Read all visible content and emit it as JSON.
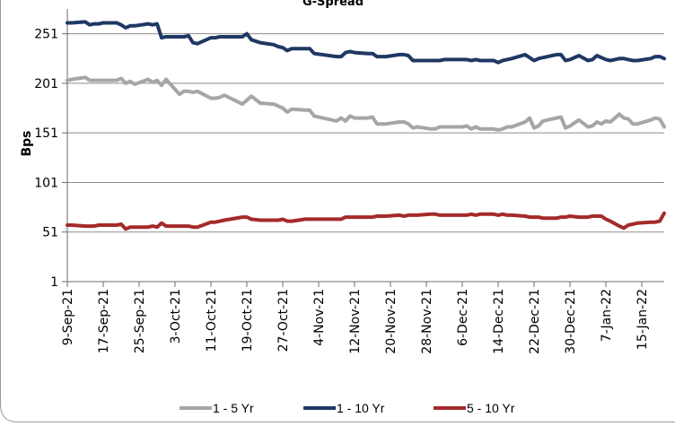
{
  "chart_data": {
    "type": "line",
    "title": "G-Spread",
    "ylabel": "Bps",
    "xlabel": "",
    "ylim": [
      1,
      276
    ],
    "yticks": [
      1,
      51,
      101,
      151,
      201,
      251
    ],
    "xtick_labels": [
      "9-Sep-21",
      "17-Sep-21",
      "25-Sep-21",
      "3-Oct-21",
      "11-Oct-21",
      "19-Oct-21",
      "27-Oct-21",
      "4-Nov-21",
      "12-Nov-21",
      "20-Nov-21",
      "28-Nov-21",
      "6-Dec-21",
      "14-Dec-21",
      "22-Dec-21",
      "30-Dec-21",
      "7-Jan-22",
      "15-Jan-22"
    ],
    "xtick_dates": [
      "2021-09-09",
      "2021-09-17",
      "2021-09-25",
      "2021-10-03",
      "2021-10-11",
      "2021-10-19",
      "2021-10-27",
      "2021-11-04",
      "2021-11-12",
      "2021-11-20",
      "2021-11-28",
      "2021-12-06",
      "2021-12-14",
      "2021-12-22",
      "2021-12-30",
      "2022-01-07",
      "2022-01-15"
    ],
    "x_range": [
      "2021-09-09",
      "2022-01-20"
    ],
    "legend_position": "bottom",
    "grid": "horizontal",
    "series": [
      {
        "name": "1 - 5 Yr",
        "color": "#a6a6a6",
        "points": [
          [
            "2021-09-09",
            204
          ],
          [
            "2021-09-10",
            205
          ],
          [
            "2021-09-13",
            207
          ],
          [
            "2021-09-14",
            204
          ],
          [
            "2021-09-15",
            204
          ],
          [
            "2021-09-16",
            204
          ],
          [
            "2021-09-17",
            204
          ],
          [
            "2021-09-20",
            204
          ],
          [
            "2021-09-21",
            206
          ],
          [
            "2021-09-22",
            201
          ],
          [
            "2021-09-23",
            203
          ],
          [
            "2021-09-24",
            200
          ],
          [
            "2021-09-27",
            205
          ],
          [
            "2021-09-28",
            202
          ],
          [
            "2021-09-29",
            204
          ],
          [
            "2021-09-30",
            199
          ],
          [
            "2021-10-01",
            205
          ],
          [
            "2021-10-04",
            190
          ],
          [
            "2021-10-05",
            193
          ],
          [
            "2021-10-06",
            193
          ],
          [
            "2021-10-07",
            192
          ],
          [
            "2021-10-08",
            193
          ],
          [
            "2021-10-11",
            186
          ],
          [
            "2021-10-12",
            186
          ],
          [
            "2021-10-13",
            187
          ],
          [
            "2021-10-14",
            189
          ],
          [
            "2021-10-18",
            180
          ],
          [
            "2021-10-19",
            184
          ],
          [
            "2021-10-20",
            188
          ],
          [
            "2021-10-22",
            181
          ],
          [
            "2021-10-25",
            180
          ],
          [
            "2021-10-26",
            178
          ],
          [
            "2021-10-27",
            176
          ],
          [
            "2021-10-28",
            172
          ],
          [
            "2021-10-29",
            175
          ],
          [
            "2021-11-01",
            174
          ],
          [
            "2021-11-02",
            174
          ],
          [
            "2021-11-03",
            168
          ],
          [
            "2021-11-08",
            163
          ],
          [
            "2021-11-09",
            166
          ],
          [
            "2021-11-10",
            163
          ],
          [
            "2021-11-11",
            168
          ],
          [
            "2021-11-12",
            166
          ],
          [
            "2021-11-15",
            166
          ],
          [
            "2021-11-16",
            167
          ],
          [
            "2021-11-17",
            160
          ],
          [
            "2021-11-19",
            160
          ],
          [
            "2021-11-22",
            162
          ],
          [
            "2021-11-23",
            162
          ],
          [
            "2021-11-24",
            160
          ],
          [
            "2021-11-25",
            156
          ],
          [
            "2021-11-26",
            157
          ],
          [
            "2021-11-29",
            155
          ],
          [
            "2021-11-30",
            155
          ],
          [
            "2021-12-01",
            157
          ],
          [
            "2021-12-02",
            157
          ],
          [
            "2021-12-03",
            157
          ],
          [
            "2021-12-06",
            157
          ],
          [
            "2021-12-07",
            158
          ],
          [
            "2021-12-08",
            155
          ],
          [
            "2021-12-09",
            157
          ],
          [
            "2021-12-10",
            155
          ],
          [
            "2021-12-13",
            155
          ],
          [
            "2021-12-14",
            154
          ],
          [
            "2021-12-15",
            155
          ],
          [
            "2021-12-16",
            157
          ],
          [
            "2021-12-17",
            157
          ],
          [
            "2021-12-20",
            162
          ],
          [
            "2021-12-21",
            166
          ],
          [
            "2021-12-22",
            156
          ],
          [
            "2021-12-23",
            158
          ],
          [
            "2021-12-24",
            163
          ],
          [
            "2021-12-27",
            166
          ],
          [
            "2021-12-28",
            167
          ],
          [
            "2021-12-29",
            156
          ],
          [
            "2021-12-30",
            158
          ],
          [
            "2022-01-01",
            164
          ],
          [
            "2022-01-03",
            157
          ],
          [
            "2022-01-04",
            158
          ],
          [
            "2022-01-05",
            162
          ],
          [
            "2022-01-06",
            160
          ],
          [
            "2022-01-07",
            163
          ],
          [
            "2022-01-08",
            162
          ],
          [
            "2022-01-10",
            170
          ],
          [
            "2022-01-11",
            166
          ],
          [
            "2022-01-12",
            165
          ],
          [
            "2022-01-13",
            160
          ],
          [
            "2022-01-14",
            160
          ],
          [
            "2022-01-17",
            164
          ],
          [
            "2022-01-18",
            166
          ],
          [
            "2022-01-19",
            165
          ],
          [
            "2022-01-20",
            157
          ]
        ]
      },
      {
        "name": "1 - 10 Yr",
        "color": "#1f3864",
        "points": [
          [
            "2021-09-09",
            262
          ],
          [
            "2021-09-10",
            262
          ],
          [
            "2021-09-13",
            263
          ],
          [
            "2021-09-14",
            260
          ],
          [
            "2021-09-15",
            261
          ],
          [
            "2021-09-16",
            261
          ],
          [
            "2021-09-17",
            262
          ],
          [
            "2021-09-20",
            262
          ],
          [
            "2021-09-21",
            260
          ],
          [
            "2021-09-22",
            257
          ],
          [
            "2021-09-23",
            259
          ],
          [
            "2021-09-24",
            259
          ],
          [
            "2021-09-27",
            261
          ],
          [
            "2021-09-28",
            260
          ],
          [
            "2021-09-29",
            261
          ],
          [
            "2021-09-30",
            247
          ],
          [
            "2021-10-01",
            248
          ],
          [
            "2021-10-04",
            248
          ],
          [
            "2021-10-05",
            248
          ],
          [
            "2021-10-06",
            249
          ],
          [
            "2021-10-07",
            242
          ],
          [
            "2021-10-08",
            241
          ],
          [
            "2021-10-11",
            247
          ],
          [
            "2021-10-12",
            247
          ],
          [
            "2021-10-13",
            248
          ],
          [
            "2021-10-14",
            248
          ],
          [
            "2021-10-18",
            248
          ],
          [
            "2021-10-19",
            251
          ],
          [
            "2021-10-20",
            245
          ],
          [
            "2021-10-22",
            242
          ],
          [
            "2021-10-25",
            240
          ],
          [
            "2021-10-26",
            238
          ],
          [
            "2021-10-27",
            237
          ],
          [
            "2021-10-28",
            234
          ],
          [
            "2021-10-29",
            236
          ],
          [
            "2021-11-01",
            236
          ],
          [
            "2021-11-02",
            236
          ],
          [
            "2021-11-03",
            231
          ],
          [
            "2021-11-08",
            228
          ],
          [
            "2021-11-09",
            228
          ],
          [
            "2021-11-10",
            232
          ],
          [
            "2021-11-11",
            233
          ],
          [
            "2021-11-12",
            232
          ],
          [
            "2021-11-15",
            231
          ],
          [
            "2021-11-16",
            231
          ],
          [
            "2021-11-17",
            228
          ],
          [
            "2021-11-19",
            228
          ],
          [
            "2021-11-22",
            230
          ],
          [
            "2021-11-23",
            230
          ],
          [
            "2021-11-24",
            229
          ],
          [
            "2021-11-25",
            224
          ],
          [
            "2021-11-26",
            224
          ],
          [
            "2021-11-29",
            224
          ],
          [
            "2021-11-30",
            224
          ],
          [
            "2021-12-01",
            224
          ],
          [
            "2021-12-02",
            225
          ],
          [
            "2021-12-03",
            225
          ],
          [
            "2021-12-06",
            225
          ],
          [
            "2021-12-07",
            225
          ],
          [
            "2021-12-08",
            224
          ],
          [
            "2021-12-09",
            225
          ],
          [
            "2021-12-10",
            224
          ],
          [
            "2021-12-13",
            224
          ],
          [
            "2021-12-14",
            222
          ],
          [
            "2021-12-15",
            224
          ],
          [
            "2021-12-16",
            225
          ],
          [
            "2021-12-17",
            226
          ],
          [
            "2021-12-20",
            230
          ],
          [
            "2021-12-21",
            227
          ],
          [
            "2021-12-22",
            224
          ],
          [
            "2021-12-23",
            226
          ],
          [
            "2021-12-24",
            227
          ],
          [
            "2021-12-27",
            230
          ],
          [
            "2021-12-28",
            230
          ],
          [
            "2021-12-29",
            224
          ],
          [
            "2021-12-30",
            225
          ],
          [
            "2022-01-01",
            229
          ],
          [
            "2022-01-03",
            224
          ],
          [
            "2022-01-04",
            225
          ],
          [
            "2022-01-05",
            229
          ],
          [
            "2022-01-06",
            227
          ],
          [
            "2022-01-07",
            225
          ],
          [
            "2022-01-08",
            224
          ],
          [
            "2022-01-10",
            226
          ],
          [
            "2022-01-11",
            226
          ],
          [
            "2022-01-12",
            225
          ],
          [
            "2022-01-13",
            224
          ],
          [
            "2022-01-14",
            224
          ],
          [
            "2022-01-17",
            226
          ],
          [
            "2022-01-18",
            228
          ],
          [
            "2022-01-19",
            228
          ],
          [
            "2022-01-20",
            226
          ]
        ]
      },
      {
        "name": "5 - 10 Yr",
        "color": "#a52a2a",
        "points": [
          [
            "2021-09-09",
            58
          ],
          [
            "2021-09-10",
            58
          ],
          [
            "2021-09-13",
            57
          ],
          [
            "2021-09-14",
            57
          ],
          [
            "2021-09-15",
            57
          ],
          [
            "2021-09-16",
            58
          ],
          [
            "2021-09-17",
            58
          ],
          [
            "2021-09-20",
            58
          ],
          [
            "2021-09-21",
            59
          ],
          [
            "2021-09-22",
            54
          ],
          [
            "2021-09-23",
            56
          ],
          [
            "2021-09-24",
            56
          ],
          [
            "2021-09-27",
            56
          ],
          [
            "2021-09-28",
            57
          ],
          [
            "2021-09-29",
            56
          ],
          [
            "2021-09-30",
            60
          ],
          [
            "2021-10-01",
            57
          ],
          [
            "2021-10-04",
            57
          ],
          [
            "2021-10-05",
            57
          ],
          [
            "2021-10-06",
            57
          ],
          [
            "2021-10-07",
            56
          ],
          [
            "2021-10-08",
            56
          ],
          [
            "2021-10-11",
            61
          ],
          [
            "2021-10-12",
            61
          ],
          [
            "2021-10-13",
            62
          ],
          [
            "2021-10-14",
            63
          ],
          [
            "2021-10-18",
            66
          ],
          [
            "2021-10-19",
            66
          ],
          [
            "2021-10-20",
            64
          ],
          [
            "2021-10-22",
            63
          ],
          [
            "2021-10-25",
            63
          ],
          [
            "2021-10-26",
            63
          ],
          [
            "2021-10-27",
            64
          ],
          [
            "2021-10-28",
            62
          ],
          [
            "2021-10-29",
            62
          ],
          [
            "2021-11-01",
            64
          ],
          [
            "2021-11-02",
            64
          ],
          [
            "2021-11-03",
            64
          ],
          [
            "2021-11-08",
            64
          ],
          [
            "2021-11-09",
            64
          ],
          [
            "2021-11-10",
            66
          ],
          [
            "2021-11-11",
            66
          ],
          [
            "2021-11-12",
            66
          ],
          [
            "2021-11-15",
            66
          ],
          [
            "2021-11-16",
            66
          ],
          [
            "2021-11-17",
            67
          ],
          [
            "2021-11-19",
            67
          ],
          [
            "2021-11-22",
            68
          ],
          [
            "2021-11-23",
            67
          ],
          [
            "2021-11-24",
            68
          ],
          [
            "2021-11-25",
            68
          ],
          [
            "2021-11-26",
            68
          ],
          [
            "2021-11-29",
            69
          ],
          [
            "2021-11-30",
            69
          ],
          [
            "2021-12-01",
            68
          ],
          [
            "2021-12-02",
            68
          ],
          [
            "2021-12-03",
            68
          ],
          [
            "2021-12-06",
            68
          ],
          [
            "2021-12-07",
            68
          ],
          [
            "2021-12-08",
            69
          ],
          [
            "2021-12-09",
            68
          ],
          [
            "2021-12-10",
            69
          ],
          [
            "2021-12-13",
            69
          ],
          [
            "2021-12-14",
            68
          ],
          [
            "2021-12-15",
            69
          ],
          [
            "2021-12-16",
            68
          ],
          [
            "2021-12-17",
            68
          ],
          [
            "2021-12-20",
            67
          ],
          [
            "2021-12-21",
            66
          ],
          [
            "2021-12-22",
            66
          ],
          [
            "2021-12-23",
            66
          ],
          [
            "2021-12-24",
            65
          ],
          [
            "2021-12-27",
            65
          ],
          [
            "2021-12-28",
            66
          ],
          [
            "2021-12-29",
            66
          ],
          [
            "2021-12-30",
            67
          ],
          [
            "2022-01-01",
            66
          ],
          [
            "2022-01-03",
            66
          ],
          [
            "2022-01-04",
            67
          ],
          [
            "2022-01-05",
            67
          ],
          [
            "2022-01-06",
            67
          ],
          [
            "2022-01-07",
            64
          ],
          [
            "2022-01-08",
            62
          ],
          [
            "2022-01-10",
            57
          ],
          [
            "2022-01-11",
            55
          ],
          [
            "2022-01-12",
            58
          ],
          [
            "2022-01-13",
            59
          ],
          [
            "2022-01-14",
            60
          ],
          [
            "2022-01-17",
            61
          ],
          [
            "2022-01-18",
            61
          ],
          [
            "2022-01-19",
            62
          ],
          [
            "2022-01-20",
            70
          ]
        ]
      }
    ]
  }
}
